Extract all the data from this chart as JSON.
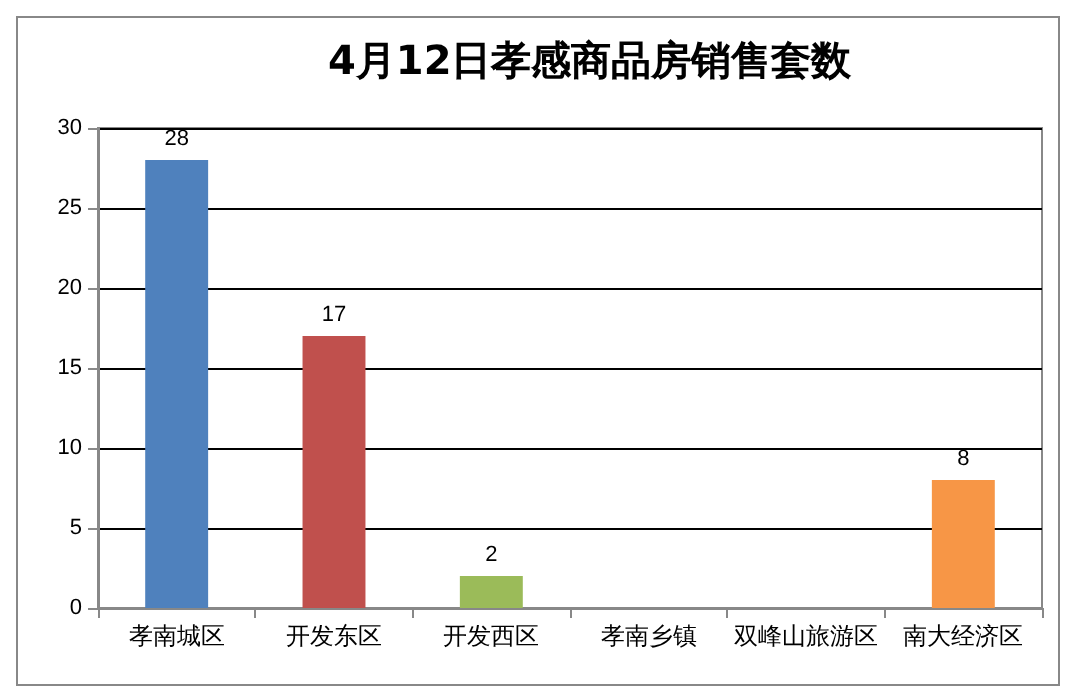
{
  "chart_data": {
    "type": "bar",
    "title": "4月12日孝感商品房销售套数",
    "categories": [
      "孝南城区",
      "开发东区",
      "开发西区",
      "孝南乡镇",
      "双峰山旅游区",
      "南大经济区"
    ],
    "values": [
      28,
      17,
      2,
      0,
      0,
      8
    ],
    "colors": [
      "#4f81bd",
      "#c0504d",
      "#9bbb59",
      "#4f81bd",
      "#4f81bd",
      "#f79646"
    ],
    "value_labels": [
      "28",
      "17",
      "2",
      null,
      null,
      "8"
    ],
    "ylim": [
      0,
      30
    ],
    "yticks": [
      0,
      5,
      10,
      15,
      20,
      25,
      30
    ],
    "grid": true
  }
}
